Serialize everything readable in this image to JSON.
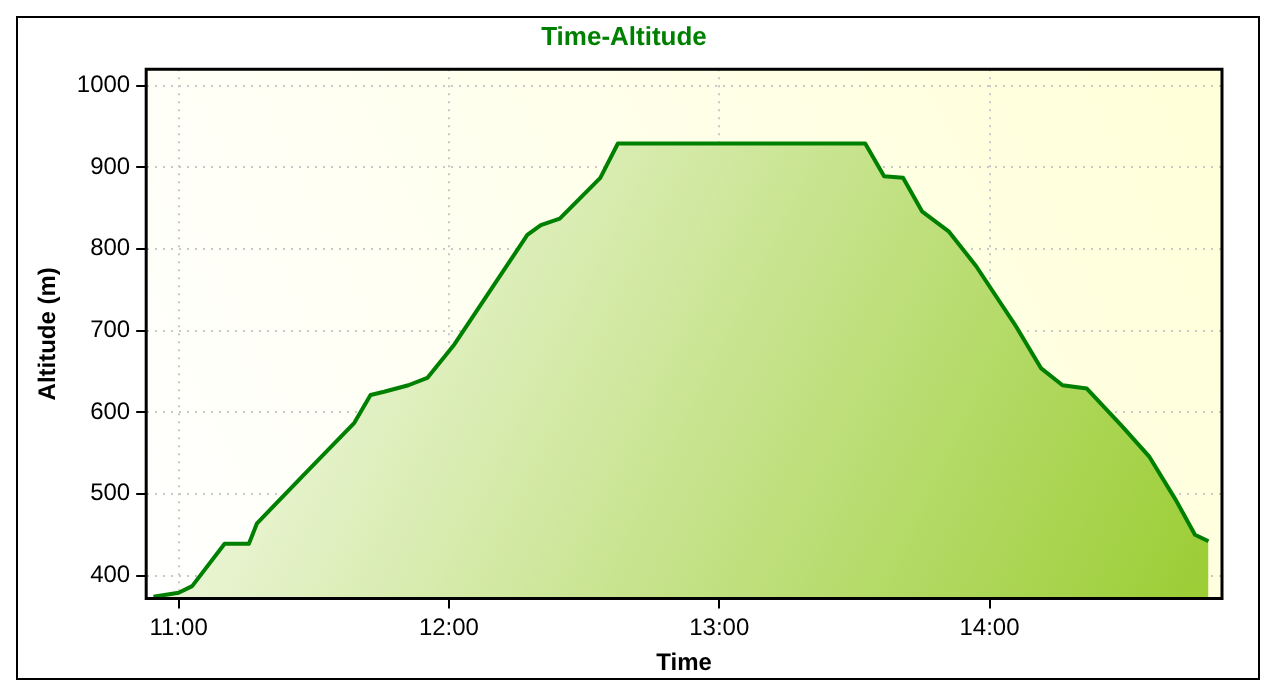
{
  "chart_data": {
    "type": "area",
    "title": "Time-Altitude",
    "xlabel": "Time",
    "ylabel": "Altitude (m)",
    "series": [
      {
        "color": "#008000",
        "x": [
          10.907,
          11.0,
          11.05,
          11.17,
          11.26,
          11.29,
          11.48,
          11.65,
          11.71,
          11.76,
          11.85,
          11.92,
          12.02,
          12.29,
          12.34,
          12.41,
          12.56,
          12.625,
          13.54,
          13.61,
          13.68,
          13.75,
          13.85,
          13.95,
          14.1,
          14.19,
          14.27,
          14.36,
          14.49,
          14.59,
          14.69,
          14.76,
          14.81
        ],
        "values": [
          374,
          379,
          387,
          439,
          439,
          464,
          529,
          587,
          621,
          625,
          633,
          642,
          683,
          817,
          829,
          837,
          887,
          929,
          929,
          889,
          887,
          846,
          821,
          779,
          704,
          654,
          633,
          629,
          583,
          546,
          492,
          450,
          442
        ]
      }
    ],
    "xlim": [
      10.88,
      14.86
    ],
    "xticks": [
      {
        "value": 11,
        "label": "11:00"
      },
      {
        "value": 12,
        "label": "12:00"
      },
      {
        "value": 13,
        "label": "13:00"
      },
      {
        "value": 14,
        "label": "14:00"
      }
    ],
    "ylim": [
      372,
      1020
    ],
    "yticks": [
      400,
      500,
      600,
      700,
      800,
      900,
      1000
    ],
    "grid": true,
    "legend": false
  }
}
